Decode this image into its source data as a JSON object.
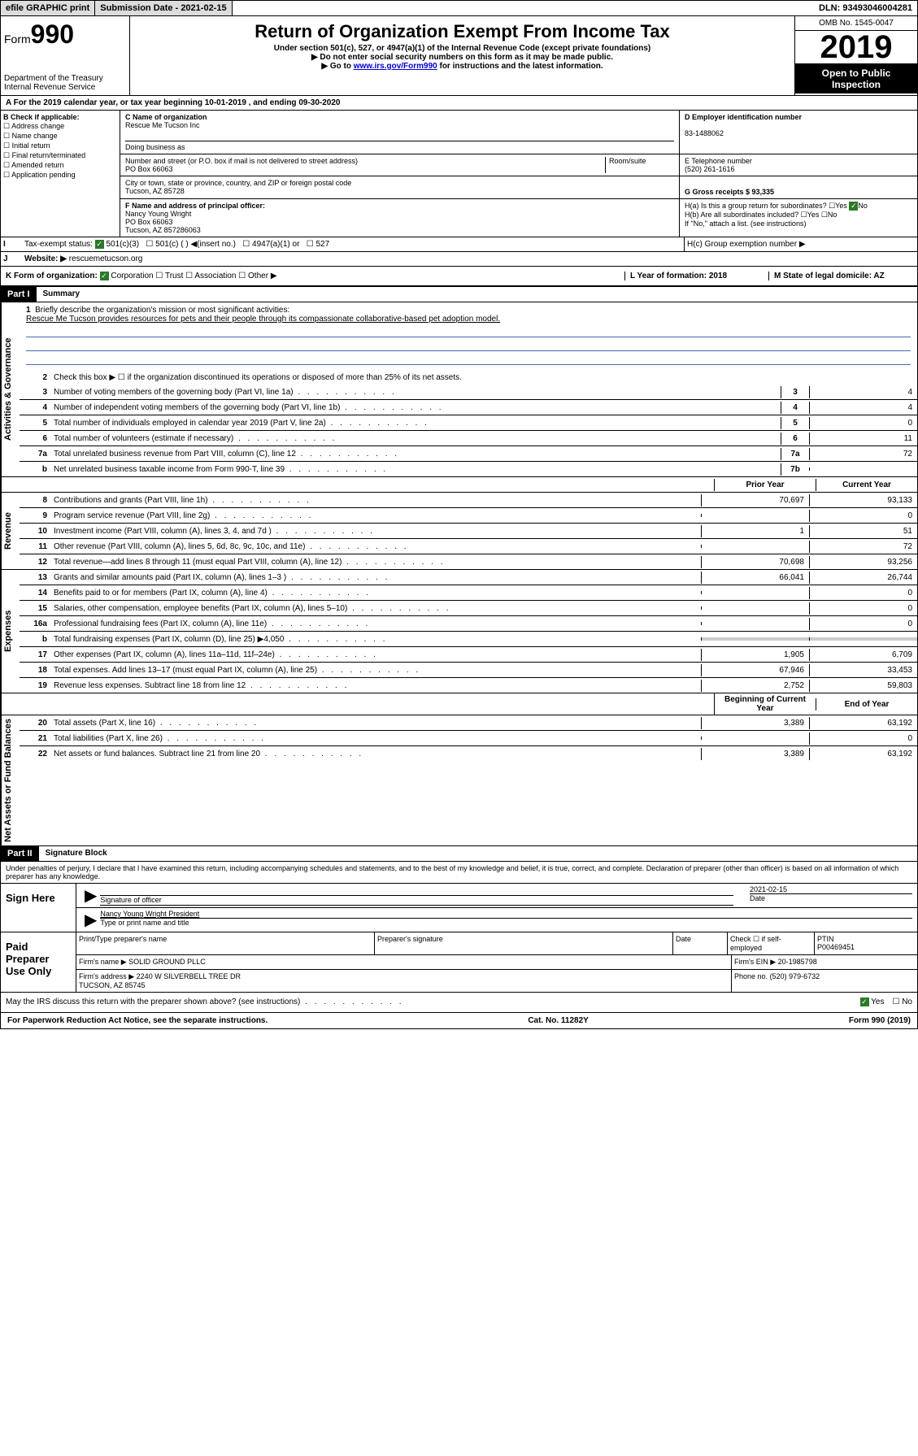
{
  "topbar": {
    "efile": "efile GRAPHIC print",
    "submission": "Submission Date - 2021-02-15",
    "dln": "DLN: 93493046004281"
  },
  "header": {
    "form_prefix": "Form",
    "form_number": "990",
    "dept": "Department of the Treasury\nInternal Revenue Service",
    "title": "Return of Organization Exempt From Income Tax",
    "subtitle": "Under section 501(c), 527, or 4947(a)(1) of the Internal Revenue Code (except private foundations)",
    "note1": "▶ Do not enter social security numbers on this form as it may be made public.",
    "note2_prefix": "▶ Go to ",
    "note2_link": "www.irs.gov/Form990",
    "note2_suffix": " for instructions and the latest information.",
    "omb": "OMB No. 1545-0047",
    "year": "2019",
    "open": "Open to Public Inspection"
  },
  "row_a": "A For the 2019 calendar year, or tax year beginning 10-01-2019    , and ending 09-30-2020",
  "section_b": {
    "title": "B Check if applicable:",
    "items": [
      "Address change",
      "Name change",
      "Initial return",
      "Final return/terminated",
      "Amended return",
      "Application pending"
    ]
  },
  "section_c": {
    "name_label": "C Name of organization",
    "name": "Rescue Me Tucson Inc",
    "dba_label": "Doing business as",
    "addr_label": "Number and street (or P.O. box if mail is not delivered to street address)",
    "room_label": "Room/suite",
    "addr": "PO Box 66063",
    "city_label": "City or town, state or province, country, and ZIP or foreign postal code",
    "city": "Tucson, AZ  85728"
  },
  "section_d": {
    "ein_label": "D Employer identification number",
    "ein": "83-1488062",
    "phone_label": "E Telephone number",
    "phone": "(520) 261-1616",
    "gross_label": "G Gross receipts $ 93,335"
  },
  "section_f": {
    "label": "F  Name and address of principal officer:",
    "name": "Nancy Young Wright",
    "addr": "PO Box 66063\nTucson, AZ  857286063"
  },
  "section_h": {
    "ha": "H(a)  Is this a group return for subordinates?",
    "hb": "H(b)  Are all subordinates included?",
    "hb_note": "If \"No,\" attach a list. (see instructions)",
    "hc": "H(c)  Group exemption number ▶"
  },
  "row_i": {
    "label": "Tax-exempt status:",
    "opts": [
      "501(c)(3)",
      "501(c) (  ) ◀(insert no.)",
      "4947(a)(1) or",
      "527"
    ]
  },
  "row_j": {
    "label": "Website: ▶",
    "value": "rescuemetucson.org"
  },
  "row_k": {
    "k": "K Form of organization:",
    "k_opts": [
      "Corporation",
      "Trust",
      "Association",
      "Other ▶"
    ],
    "l": "L Year of formation: 2018",
    "m": "M State of legal domicile: AZ"
  },
  "part1": {
    "header": "Part I",
    "title": "Summary",
    "sections": {
      "governance": "Activities & Governance",
      "revenue": "Revenue",
      "expenses": "Expenses",
      "net": "Net Assets or Fund Balances"
    },
    "line1_label": "Briefly describe the organization's mission or most significant activities:",
    "line1_text": "Rescue Me Tucson provides resources for pets and their people through its compassionate collaborative-based pet adoption model.",
    "line2": "Check this box ▶ ☐  if the organization discontinued its operations or disposed of more than 25% of its net assets.",
    "lines_simple": [
      {
        "num": "3",
        "text": "Number of voting members of the governing body (Part VI, line 1a)",
        "box": "3",
        "val": "4"
      },
      {
        "num": "4",
        "text": "Number of independent voting members of the governing body (Part VI, line 1b)",
        "box": "4",
        "val": "4"
      },
      {
        "num": "5",
        "text": "Total number of individuals employed in calendar year 2019 (Part V, line 2a)",
        "box": "5",
        "val": "0"
      },
      {
        "num": "6",
        "text": "Total number of volunteers (estimate if necessary)",
        "box": "6",
        "val": "11"
      },
      {
        "num": "7a",
        "text": "Total unrelated business revenue from Part VIII, column (C), line 12",
        "box": "7a",
        "val": "72"
      },
      {
        "num": "b",
        "text": "Net unrelated business taxable income from Form 990-T, line 39",
        "box": "7b",
        "val": ""
      }
    ],
    "col_headers": {
      "prior": "Prior Year",
      "current": "Current Year",
      "begin": "Beginning of Current Year",
      "end": "End of Year"
    },
    "lines_2col": [
      {
        "num": "8",
        "text": "Contributions and grants (Part VIII, line 1h)",
        "prior": "70,697",
        "current": "93,133"
      },
      {
        "num": "9",
        "text": "Program service revenue (Part VIII, line 2g)",
        "prior": "",
        "current": "0"
      },
      {
        "num": "10",
        "text": "Investment income (Part VIII, column (A), lines 3, 4, and 7d )",
        "prior": "1",
        "current": "51"
      },
      {
        "num": "11",
        "text": "Other revenue (Part VIII, column (A), lines 5, 6d, 8c, 9c, 10c, and 11e)",
        "prior": "",
        "current": "72"
      },
      {
        "num": "12",
        "text": "Total revenue—add lines 8 through 11 (must equal Part VIII, column (A), line 12)",
        "prior": "70,698",
        "current": "93,256"
      },
      {
        "num": "13",
        "text": "Grants and similar amounts paid (Part IX, column (A), lines 1–3 )",
        "prior": "66,041",
        "current": "26,744"
      },
      {
        "num": "14",
        "text": "Benefits paid to or for members (Part IX, column (A), line 4)",
        "prior": "",
        "current": "0"
      },
      {
        "num": "15",
        "text": "Salaries, other compensation, employee benefits (Part IX, column (A), lines 5–10)",
        "prior": "",
        "current": "0"
      },
      {
        "num": "16a",
        "text": "Professional fundraising fees (Part IX, column (A), line 11e)",
        "prior": "",
        "current": "0"
      },
      {
        "num": "b",
        "text": "Total fundraising expenses (Part IX, column (D), line 25) ▶4,050",
        "prior": "GRAY",
        "current": "GRAY"
      },
      {
        "num": "17",
        "text": "Other expenses (Part IX, column (A), lines 11a–11d, 11f–24e)",
        "prior": "1,905",
        "current": "6,709"
      },
      {
        "num": "18",
        "text": "Total expenses. Add lines 13–17 (must equal Part IX, column (A), line 25)",
        "prior": "67,946",
        "current": "33,453"
      },
      {
        "num": "19",
        "text": "Revenue less expenses. Subtract line 18 from line 12",
        "prior": "2,752",
        "current": "59,803"
      }
    ],
    "lines_net": [
      {
        "num": "20",
        "text": "Total assets (Part X, line 16)",
        "prior": "3,389",
        "current": "63,192"
      },
      {
        "num": "21",
        "text": "Total liabilities (Part X, line 26)",
        "prior": "",
        "current": "0"
      },
      {
        "num": "22",
        "text": "Net assets or fund balances. Subtract line 21 from line 20",
        "prior": "3,389",
        "current": "63,192"
      }
    ]
  },
  "part2": {
    "header": "Part II",
    "title": "Signature Block",
    "penalty": "Under penalties of perjury, I declare that I have examined this return, including accompanying schedules and statements, and to the best of my knowledge and belief, it is true, correct, and complete. Declaration of preparer (other than officer) is based on all information of which preparer has any knowledge."
  },
  "sign": {
    "label": "Sign Here",
    "sig_label": "Signature of officer",
    "date": "2021-02-15",
    "date_label": "Date",
    "name": "Nancy Young Wright  President",
    "name_label": "Type or print name and title"
  },
  "preparer": {
    "label": "Paid Preparer Use Only",
    "col1": "Print/Type preparer's name",
    "col2": "Preparer's signature",
    "col3": "Date",
    "col4_check": "Check ☐ if self-employed",
    "ptin_label": "PTIN",
    "ptin": "P00469451",
    "firm_name_label": "Firm's name    ▶",
    "firm_name": "SOLID GROUND PLLC",
    "firm_ein_label": "Firm's EIN ▶",
    "firm_ein": "20-1985798",
    "firm_addr_label": "Firm's address ▶",
    "firm_addr": "2240 W SILVERBELL TREE DR\nTUCSON, AZ  85745",
    "phone_label": "Phone no.",
    "phone": "(520) 979-6732"
  },
  "discuss": "May the IRS discuss this return with the preparer shown above? (see instructions)",
  "footer": {
    "left": "For Paperwork Reduction Act Notice, see the separate instructions.",
    "center": "Cat. No. 11282Y",
    "right": "Form 990 (2019)"
  }
}
